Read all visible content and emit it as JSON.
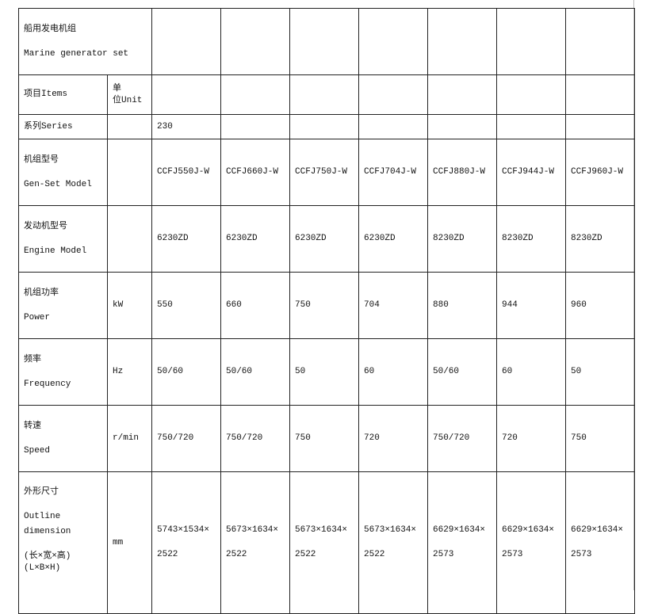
{
  "header": {
    "zh": "船用发电机组",
    "en": "Marine generator set"
  },
  "columns_row": {
    "items": "项目Items",
    "unit_zh": "单",
    "unit_en": "位Unit"
  },
  "series_row": {
    "label": "系列Series",
    "unit": "",
    "value": "230"
  },
  "rows": [
    {
      "zh": "机组型号",
      "en": "Gen-Set Model",
      "unit": "",
      "values": [
        "CCFJ550J-W",
        "CCFJ660J-W",
        "CCFJ750J-W",
        "CCFJ704J-W",
        "CCFJ880J-W",
        "CCFJ944J-W",
        "CCFJ960J-W"
      ]
    },
    {
      "zh": "发动机型号",
      "en": "Engine Model",
      "unit": "",
      "values": [
        "6230ZD",
        "6230ZD",
        "6230ZD",
        "6230ZD",
        "8230ZD",
        "8230ZD",
        "8230ZD"
      ]
    },
    {
      "zh": "机组功率",
      "en": "Power",
      "unit": "kW",
      "values": [
        "550",
        "660",
        "750",
        "704",
        "880",
        "944",
        "960"
      ]
    },
    {
      "zh": "频率",
      "en": "Frequency",
      "unit": "Hz",
      "values": [
        "50/60",
        "50/60",
        "50",
        "60",
        "50/60",
        "60",
        "50"
      ]
    },
    {
      "zh": "转速",
      "en": "Speed",
      "unit": "r/min",
      "values": [
        "750/720",
        "750/720",
        "750",
        "720",
        "750/720",
        "720",
        "750"
      ]
    }
  ],
  "dimension_row": {
    "zh": "外形尺寸",
    "en1": "Outline",
    "en2": "dimension",
    "zh2": "(长×宽×高)",
    "en3": "(L×B×H)",
    "unit": "mm",
    "values": [
      [
        "5743×1534×",
        "2522"
      ],
      [
        "5673×1634×",
        "2522"
      ],
      [
        "5673×1634×",
        "2522"
      ],
      [
        "5673×1634×",
        "2522"
      ],
      [
        "6629×1634×",
        "2573"
      ],
      [
        "6629×1634×",
        "2573"
      ],
      [
        "6629×1634×",
        "2573"
      ]
    ]
  }
}
